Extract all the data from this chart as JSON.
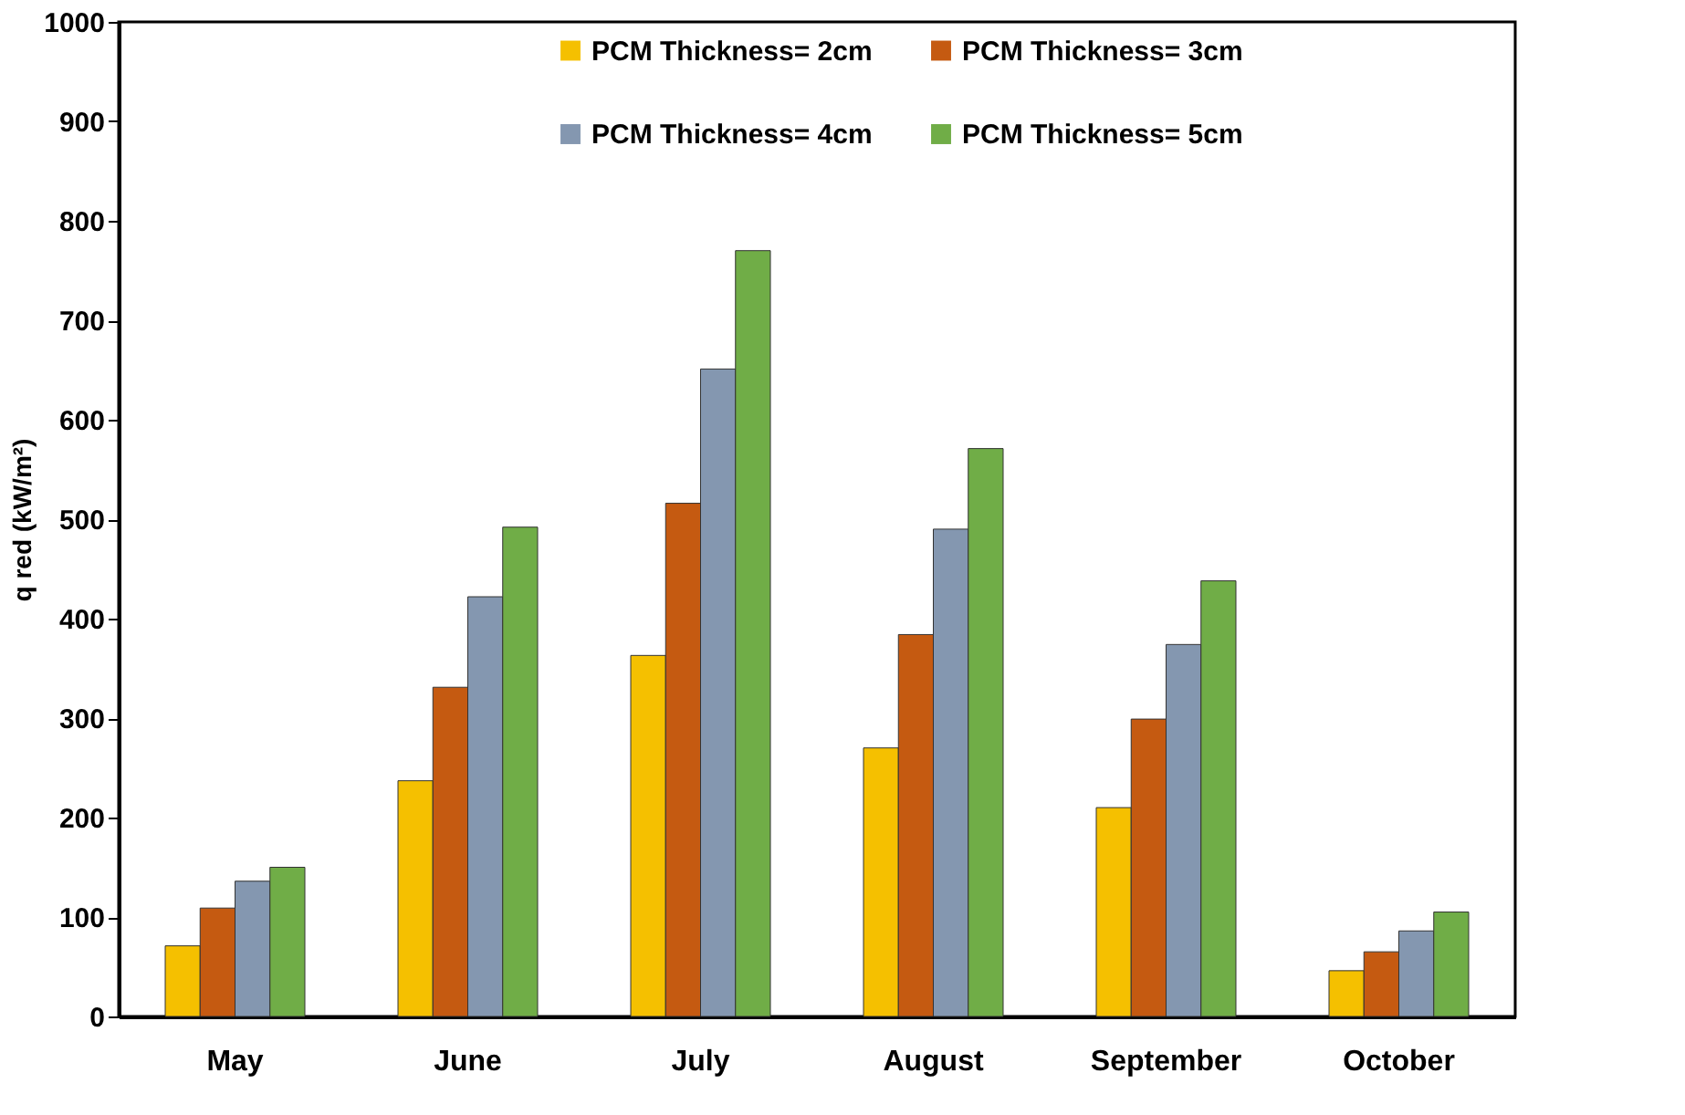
{
  "chart_data": {
    "type": "bar",
    "ylabel": "q red (kW/m²)",
    "categories": [
      "May",
      "June",
      "July",
      "August",
      "September",
      "October"
    ],
    "series": [
      {
        "name": "PCM Thickness= 2cm",
        "color": "#f5c000",
        "values": [
          71,
          237,
          363,
          270,
          210,
          46
        ]
      },
      {
        "name": "PCM Thickness= 3cm",
        "color": "#c55a11",
        "values": [
          109,
          331,
          516,
          384,
          299,
          65
        ]
      },
      {
        "name": "PCM Thickness= 4cm",
        "color": "#8497b0",
        "values": [
          136,
          422,
          651,
          490,
          374,
          86
        ]
      },
      {
        "name": "PCM Thickness= 5cm",
        "color": "#70ad47",
        "values": [
          150,
          492,
          770,
          571,
          438,
          105
        ]
      }
    ],
    "ylim": [
      0,
      1000
    ],
    "yticks": [
      0,
      100,
      200,
      300,
      400,
      500,
      600,
      700,
      800,
      900,
      1000
    ],
    "grid": false,
    "legend": "top"
  }
}
